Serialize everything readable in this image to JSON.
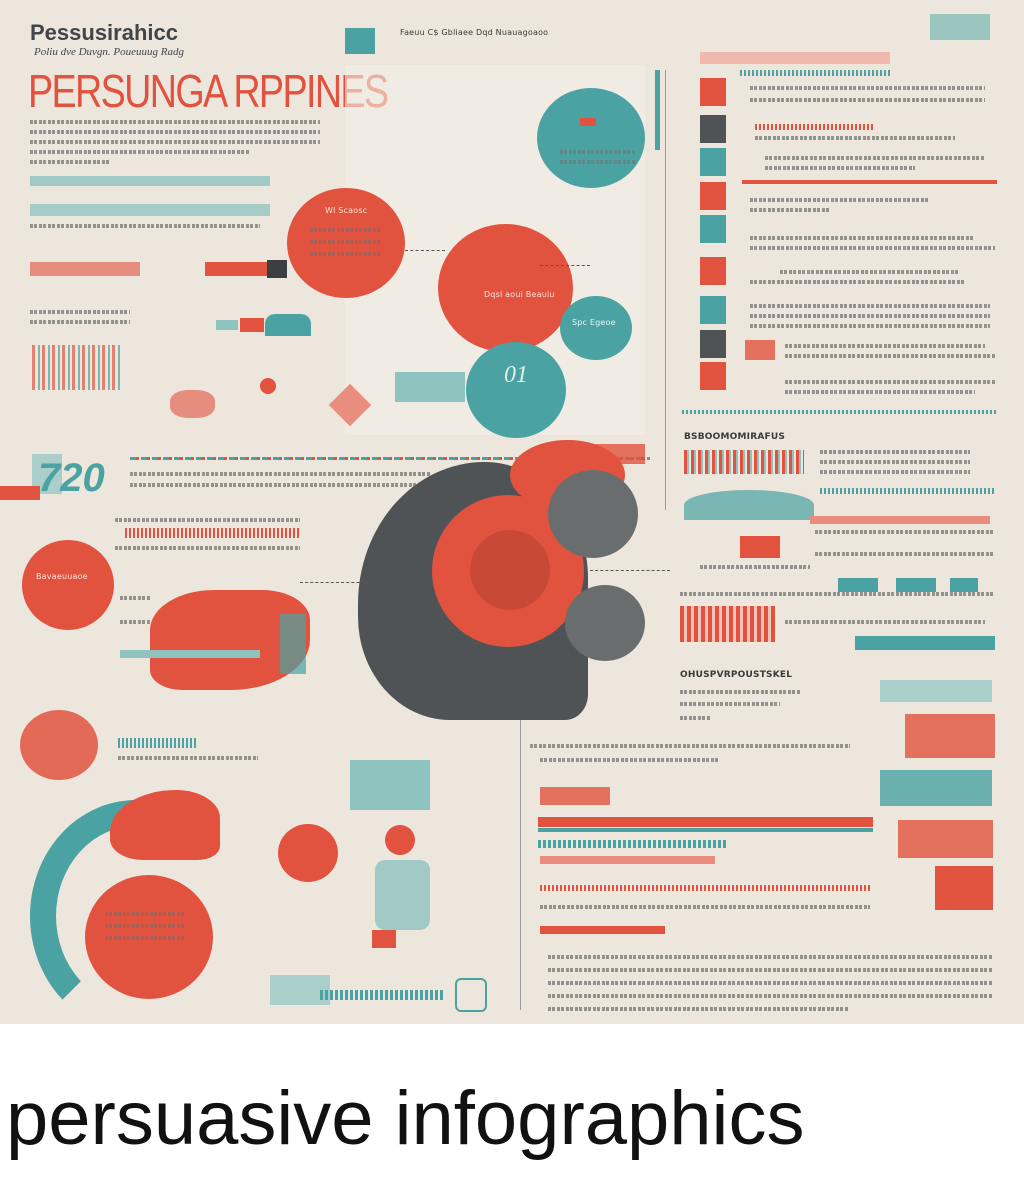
{
  "poster": {
    "small_title": "Pessusirahicc",
    "subtitle": "Poliu dve Duvgn. Poueuuug Radg",
    "big_title": "PERSUNGA RPPINES",
    "top_header_text": "Faeuu C$ Gbliaee Dqd Nuauagoaoo",
    "number_label": "720",
    "number_01": "01",
    "section_heading_right": "BSBOOMOMIRAFUS",
    "section_heading_mid": "OHUSPVRPOUSTSKEL",
    "hero_bubble_text": "Wl Scaosc",
    "bubble_caption": "Dqsl aoui Beauiu",
    "left_bubble_text": "Bavaeuuaoe",
    "teal_bubble_text": "Spc Egeoe"
  },
  "caption": {
    "text": "persuasive infographics"
  },
  "colors": {
    "background": "#ece6dc",
    "red": "#e2533f",
    "teal": "#4aa3a2",
    "dark": "#4f5355"
  }
}
